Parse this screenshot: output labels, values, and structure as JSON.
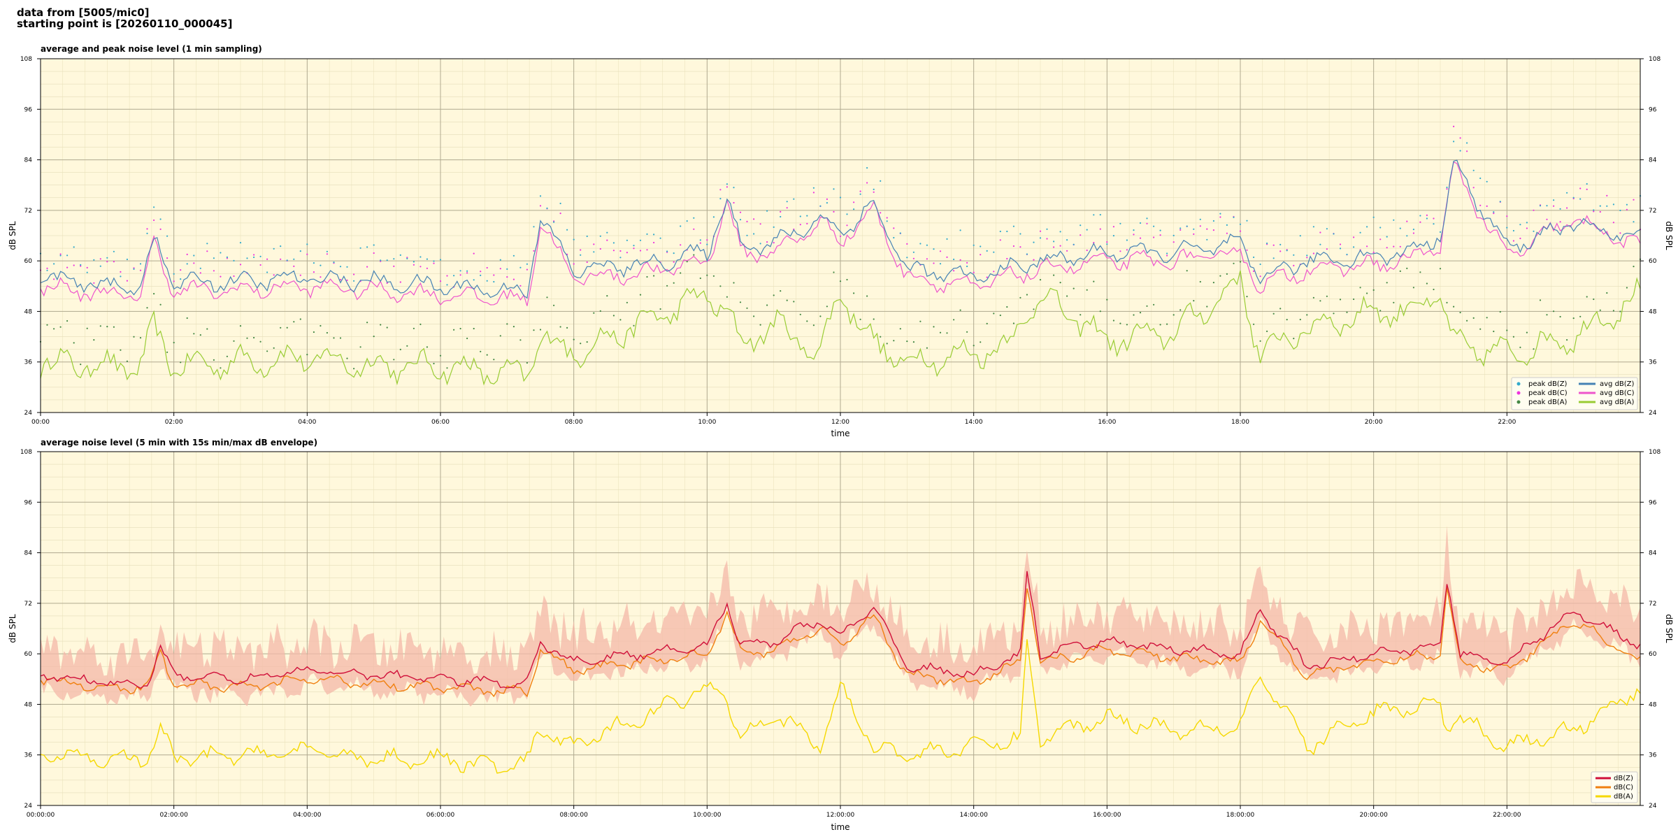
{
  "header": {
    "line1": "data from [5005/mic0]",
    "line2": "starting point is [20260110_000045]"
  },
  "chart_data": [
    {
      "type": "line",
      "title": "average and peak noise level (1 min sampling)",
      "xlabel": "time",
      "ylabel": "dB SPL",
      "xlim": [
        0,
        24
      ],
      "ylim": [
        24,
        108
      ],
      "yticks": [
        24,
        36,
        48,
        60,
        72,
        84,
        96,
        108
      ],
      "xticks": [
        "00:00",
        "02:00",
        "04:00",
        "06:00",
        "08:00",
        "10:00",
        "12:00",
        "14:00",
        "16:00",
        "18:00",
        "20:00",
        "22:00"
      ],
      "grid": true,
      "legend_position": "lower-right",
      "legend": [
        "peak dB(Z)",
        "peak dB(C)",
        "peak dB(A)",
        "avg dB(Z)",
        "avg dB(C)",
        "avg dB(A)"
      ],
      "colors": {
        "Z": "#4682b4",
        "C": "#ee55cc",
        "A": "#99cc33",
        "peakZ": "#33aacc",
        "peakC": "#ee33dd",
        "peakA": "#448844"
      },
      "series_keypoints_hours": [
        0,
        1,
        1.5,
        1.7,
        2,
        3,
        4,
        5,
        6,
        7,
        7.3,
        7.5,
        8,
        9,
        10,
        10.3,
        10.5,
        11,
        11.7,
        12,
        12.5,
        13,
        14,
        14.5,
        15,
        16,
        17,
        18,
        18.3,
        19,
        20,
        20.5,
        21,
        21.2,
        22,
        23,
        24
      ],
      "avg_z": [
        56,
        54,
        54,
        65,
        55,
        55,
        56,
        55,
        54,
        53,
        53,
        70,
        58,
        59,
        62,
        75,
        64,
        64,
        70,
        67,
        73,
        58,
        56,
        58,
        60,
        62,
        62,
        64,
        56,
        60,
        61,
        62,
        66,
        83,
        63,
        69,
        65
      ],
      "avg_c": [
        54,
        52,
        52,
        64,
        53,
        53,
        54,
        53,
        52,
        51,
        51,
        69,
        56,
        57,
        60,
        74,
        62,
        62,
        69,
        65,
        72,
        56,
        54,
        56,
        58,
        60,
        60,
        62,
        54,
        58,
        59,
        60,
        64,
        82,
        61,
        70,
        63
      ],
      "avg_a": [
        36,
        35,
        35,
        44,
        35,
        36,
        37,
        35,
        35,
        33,
        33,
        42,
        38,
        45,
        52,
        48,
        40,
        45,
        38,
        53,
        40,
        36,
        38,
        40,
        52,
        41,
        43,
        55,
        38,
        44,
        48,
        48,
        52,
        40,
        38,
        42,
        52
      ]
    },
    {
      "type": "area",
      "title": "average noise level (5 min with 15s min/max dB envelope)",
      "xlabel": "time",
      "ylabel": "dB SPL",
      "xlim": [
        0,
        24
      ],
      "ylim": [
        24,
        108
      ],
      "yticks": [
        24,
        36,
        48,
        60,
        72,
        84,
        96,
        108
      ],
      "xticks": [
        "00:00:00",
        "02:00:00",
        "04:00:00",
        "06:00:00",
        "08:00:00",
        "10:00:00",
        "12:00:00",
        "14:00:00",
        "16:00:00",
        "18:00:00",
        "20:00:00",
        "22:00:00"
      ],
      "grid": true,
      "legend_position": "lower-right",
      "legend": [
        "dB(Z)",
        "dB(C)",
        "dB(A)"
      ],
      "colors": {
        "Z": "#d0103a",
        "C": "#f08010",
        "A": "#f5d800",
        "envelope": "#f4b8a8"
      },
      "series_keypoints_hours": [
        0,
        1,
        1.6,
        1.8,
        2,
        3,
        4,
        5,
        6,
        7,
        7.3,
        7.5,
        8,
        9,
        10,
        10.3,
        10.5,
        11,
        11.7,
        12,
        12.5,
        13,
        14,
        14.7,
        14.8,
        15,
        16,
        17,
        18,
        18.3,
        19,
        20,
        20.5,
        21,
        21.1,
        21.3,
        22,
        23,
        24
      ],
      "z": [
        55,
        53,
        53,
        61,
        55,
        54,
        56,
        55,
        54,
        53,
        53,
        63,
        58,
        60,
        62,
        72,
        62,
        63,
        68,
        64,
        71,
        57,
        55,
        60,
        79,
        60,
        63,
        61,
        60,
        70,
        57,
        60,
        61,
        62,
        78,
        60,
        58,
        70,
        62
      ],
      "c": [
        54,
        52,
        52,
        60,
        53,
        52,
        54,
        53,
        52,
        51,
        51,
        61,
        56,
        58,
        60,
        70,
        60,
        61,
        66,
        62,
        69,
        55,
        53,
        58,
        77,
        58,
        61,
        59,
        58,
        68,
        55,
        58,
        59,
        60,
        76,
        58,
        56,
        68,
        58
      ],
      "a": [
        36,
        35,
        35,
        42,
        35,
        36,
        37,
        35,
        35,
        33,
        34,
        42,
        38,
        45,
        52,
        50,
        40,
        46,
        38,
        52,
        38,
        36,
        38,
        40,
        62,
        40,
        45,
        42,
        43,
        55,
        38,
        46,
        47,
        48,
        42,
        45,
        38,
        42,
        52
      ]
    }
  ]
}
